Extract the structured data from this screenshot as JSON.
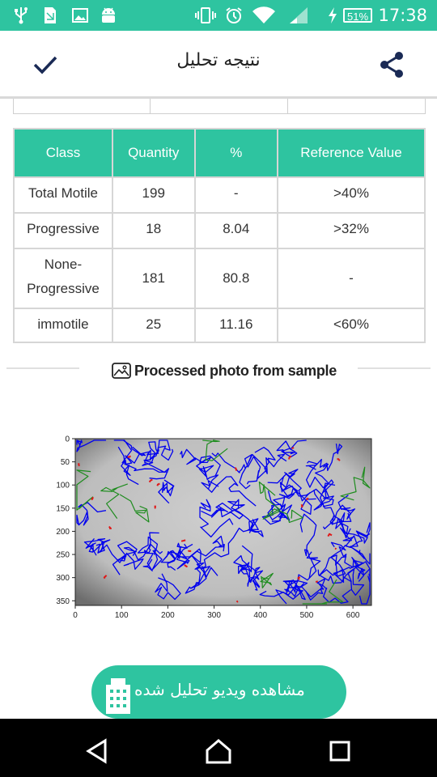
{
  "status_bar": {
    "time": "17:38",
    "battery": "51%",
    "icons": [
      "usb-icon",
      "sim-icon",
      "image-icon",
      "android-icon",
      "vibrate-icon",
      "alarm-icon",
      "wifi-icon",
      "signal-icon",
      "charging-icon"
    ]
  },
  "app_bar": {
    "title": "نتیجه تحلیل",
    "left_icon": "checkmark-icon",
    "right_icon": "share-icon"
  },
  "results_table": {
    "headers": [
      "Class",
      "Quantity",
      "%",
      "Reference Value"
    ],
    "rows": [
      {
        "class": "Total Motile",
        "quantity": "199",
        "percent": "-",
        "reference": ">40%"
      },
      {
        "class": "Progressive",
        "quantity": "18",
        "percent": "8.04",
        "reference": ">32%"
      },
      {
        "class": "None-Progressive",
        "quantity": "181",
        "percent": "80.8",
        "reference": "-"
      },
      {
        "class": "immotile",
        "quantity": "25",
        "percent": "11.16",
        "reference": "<60%"
      }
    ]
  },
  "processed_photo": {
    "title": "Processed photo from sample",
    "icon": "image-icon",
    "x_ticks": [
      "0",
      "100",
      "200",
      "300",
      "400",
      "500",
      "600"
    ],
    "y_ticks": [
      "0",
      "50",
      "100",
      "150",
      "200",
      "250",
      "300",
      "350"
    ],
    "track_colors": {
      "blue": "#0000ee",
      "green": "#1e8c1e",
      "red": "#e01818"
    }
  },
  "action_button": {
    "label": "مشاهده ویدیو تحلیل شده",
    "icon": "building-icon"
  },
  "nav_bar": {
    "back_icon": "back-icon",
    "home_icon": "home-icon",
    "recents_icon": "recents-icon"
  }
}
